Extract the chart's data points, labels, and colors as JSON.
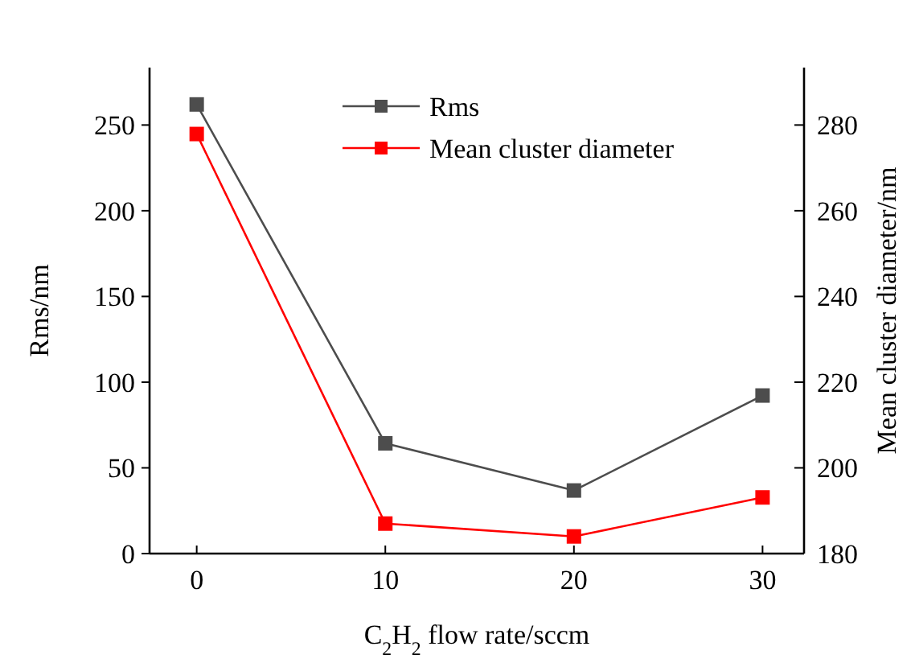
{
  "chart_data": {
    "type": "line",
    "xlabel": "C$_{2}$H$_{2}$ flow rate/sccm",
    "ylabel": "Rms/nm",
    "y2label": "Mean cluster diameter/nm",
    "x": [
      0,
      10,
      20,
      30
    ],
    "xlim": [
      -2.5,
      32.2
    ],
    "xticks": [
      0,
      10,
      20,
      30
    ],
    "ylim": [
      0,
      283.5
    ],
    "yticks": [
      0,
      50,
      100,
      150,
      200,
      250
    ],
    "y2lim": [
      180,
      293.4
    ],
    "y2ticks": [
      180,
      200,
      220,
      240,
      260,
      280
    ],
    "marker": "square",
    "line_style": "solid",
    "legend": "top",
    "grid": false,
    "series": [
      {
        "name": "Rms",
        "color": "#4d4d4d",
        "values": [
          262,
          64.3,
          36.8,
          92.2
        ]
      },
      {
        "name": "Mean cluster diameter",
        "color": "#ff0000",
        "axis": "y2",
        "values": [
          277.9,
          187.0,
          184.0,
          193.1
        ]
      }
    ]
  }
}
